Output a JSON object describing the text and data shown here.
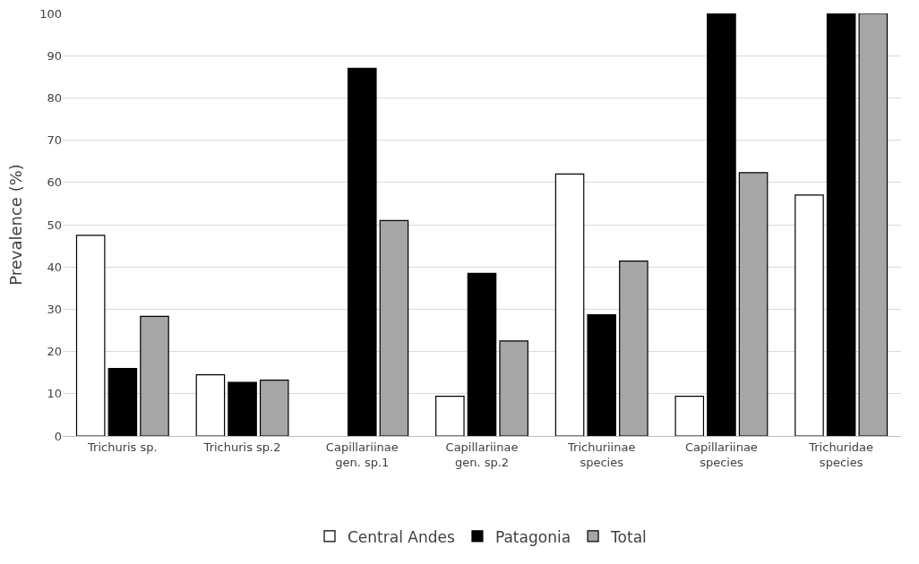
{
  "chart_data": {
    "type": "bar",
    "ylabel": "Prevalence (%)",
    "categories": [
      "Trichuris sp.",
      "Trichuris sp.2",
      "Capillariinae\ngen. sp.1",
      "Capillariinae\ngen. sp.2",
      "Trichuriinae\nspecies",
      "Capillariinae\nspecies",
      "Trichuridae\nspecies"
    ],
    "series": [
      {
        "name": "Central Andes",
        "color": "#ffffff",
        "values": [
          47.5,
          14.5,
          null,
          9.4,
          62,
          9.4,
          57
        ]
      },
      {
        "name": "Patagonia",
        "color": "#000000",
        "values": [
          16,
          12.7,
          87,
          38.5,
          28.7,
          100,
          100
        ]
      },
      {
        "name": "Total",
        "color": "#a6a6a6",
        "values": [
          28.3,
          13.2,
          51,
          22.5,
          41.4,
          62.3,
          100
        ]
      }
    ],
    "ylim": [
      0,
      100
    ],
    "yticks": [
      0,
      10,
      20,
      30,
      40,
      50,
      60,
      70,
      80,
      90,
      100
    ],
    "grid": "y",
    "legend": "bottom"
  }
}
